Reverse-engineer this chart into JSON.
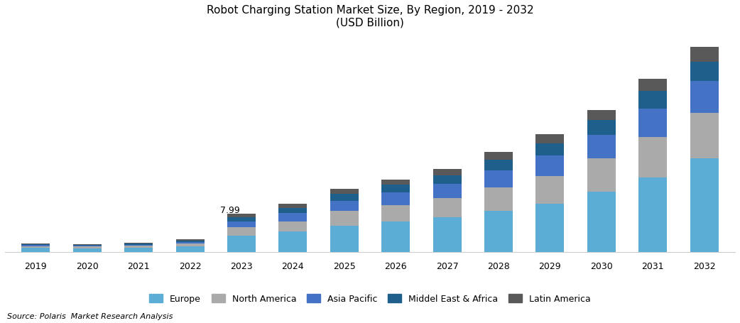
{
  "title_line1": "Robot Charging Station Market Size, By Region, 2019 - 2032",
  "title_line2": "(USD Billion)",
  "years": [
    2019,
    2020,
    2021,
    2022,
    2023,
    2024,
    2025,
    2026,
    2027,
    2028,
    2029,
    2030,
    2031,
    2032
  ],
  "regions": [
    "Europe",
    "North America",
    "Asia Pacific",
    "Middel East & Africa",
    "Latin America"
  ],
  "colors": [
    "#5BADD6",
    "#AAAAAA",
    "#4472C4",
    "#1F5F8B",
    "#595959"
  ],
  "data": {
    "Europe": [
      0.8,
      0.75,
      0.85,
      1.2,
      3.4,
      4.2,
      5.5,
      6.3,
      7.2,
      8.5,
      10.0,
      12.5,
      15.5,
      19.5
    ],
    "North America": [
      0.35,
      0.32,
      0.38,
      0.55,
      1.7,
      2.2,
      3.0,
      3.5,
      4.0,
      5.0,
      5.8,
      7.0,
      8.5,
      9.5
    ],
    "Asia Pacific": [
      0.22,
      0.2,
      0.24,
      0.35,
      1.3,
      1.7,
      2.2,
      2.6,
      3.0,
      3.6,
      4.3,
      5.0,
      6.0,
      6.8
    ],
    "Middel East & Africa": [
      0.18,
      0.17,
      0.19,
      0.28,
      0.9,
      1.1,
      1.4,
      1.6,
      1.8,
      2.2,
      2.6,
      3.0,
      3.6,
      4.0
    ],
    "Latin America": [
      0.14,
      0.13,
      0.15,
      0.22,
      0.69,
      0.85,
      1.0,
      1.1,
      1.3,
      1.6,
      1.9,
      2.2,
      2.6,
      3.0
    ]
  },
  "annotation_year": 2023,
  "annotation_text": "7.99",
  "source": "Source: Polaris  Market Research Analysis",
  "background_color": "#FFFFFF",
  "bar_width": 0.55
}
